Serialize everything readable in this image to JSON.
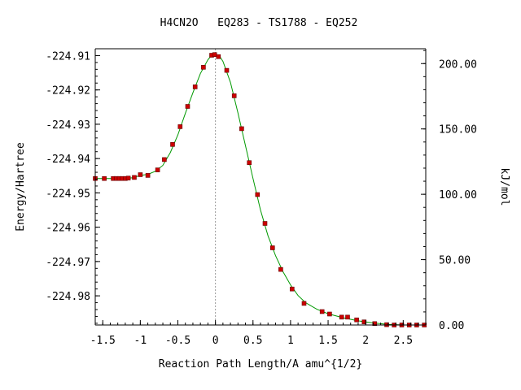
{
  "chart_data": {
    "type": "scatter",
    "title": "H4CN2O   EQ283 - TS1788 - EQ252",
    "xlabel": "Reaction Path Length/A amu^{1/2}",
    "ylabel": "Energy/Hartree",
    "y2label": "kJ/mol",
    "xlim": [
      -1.6,
      2.8
    ],
    "ylim": [
      -224.9885,
      -224.908
    ],
    "y2lim": [
      0.0,
      211.35
    ],
    "x_ticks": [
      -1.5,
      -1,
      -0.5,
      0,
      0.5,
      1,
      1.5,
      2,
      2.5
    ],
    "x_tick_labels": [
      "-1.5",
      "-1",
      "-0.5",
      "0",
      "0.5",
      "1",
      "1.5",
      "2",
      "2.5"
    ],
    "y_ticks": [
      -224.91,
      -224.92,
      -224.93,
      -224.94,
      -224.95,
      -224.96,
      -224.97,
      -224.98
    ],
    "y_tick_labels": [
      "-224.91",
      "-224.92",
      "-224.93",
      "-224.94",
      "-224.95",
      "-224.96",
      "-224.97",
      "-224.98"
    ],
    "y2_ticks": [
      200,
      150,
      100,
      50,
      0
    ],
    "y2_tick_labels": [
      "200.00",
      "150.00",
      "100.00",
      "50.00",
      "0.00"
    ],
    "ts_x": 0.0,
    "grid": false,
    "series": [
      {
        "style": "markers",
        "color": "#cc0000",
        "x": [
          -1.6,
          -1.48,
          -1.36,
          -1.32,
          -1.28,
          -1.24,
          -1.2,
          -1.16,
          -1.08,
          -1.0,
          -0.9,
          -0.77,
          -0.68,
          -0.57,
          -0.47,
          -0.37,
          -0.27,
          -0.16,
          -0.05,
          -0.01,
          0.04,
          0.15,
          0.25,
          0.35,
          0.45,
          0.56,
          0.66,
          0.76,
          0.87,
          1.02,
          1.18,
          1.42,
          1.52,
          1.68,
          1.76,
          1.88,
          1.98,
          2.12,
          2.28,
          2.38,
          2.48,
          2.58,
          2.68,
          2.78
        ],
        "y": [
          -224.9458,
          -224.9458,
          -224.9458,
          -224.9458,
          -224.9458,
          -224.9458,
          -224.9458,
          -224.9457,
          -224.9455,
          -224.9447,
          -224.9449,
          -224.9433,
          -224.9403,
          -224.9359,
          -224.9307,
          -224.9248,
          -224.9191,
          -224.9134,
          -224.9099,
          -224.9097,
          -224.9103,
          -224.9143,
          -224.9217,
          -224.9313,
          -224.9412,
          -224.9505,
          -224.9589,
          -224.966,
          -224.9723,
          -224.978,
          -224.9822,
          -224.9846,
          -224.9853,
          -224.9862,
          -224.9862,
          -224.987,
          -224.9876,
          -224.9881,
          -224.9884,
          -224.9885,
          -224.9885,
          -224.9885,
          -224.9885,
          -224.9885
        ]
      },
      {
        "style": "line",
        "color": "#009900",
        "x": [
          -1.6,
          -1.4,
          -1.2,
          -1.1,
          -1.0,
          -0.9,
          -0.8,
          -0.7,
          -0.6,
          -0.5,
          -0.4,
          -0.3,
          -0.2,
          -0.1,
          -0.05,
          0.0,
          0.05,
          0.1,
          0.2,
          0.3,
          0.4,
          0.5,
          0.6,
          0.7,
          0.8,
          0.9,
          1.0,
          1.1,
          1.2,
          1.35,
          1.5,
          1.7,
          1.9,
          2.1,
          2.3,
          2.5,
          2.8
        ],
        "y": [
          -224.9458,
          -224.9458,
          -224.9458,
          -224.9456,
          -224.9449,
          -224.9446,
          -224.9437,
          -224.942,
          -224.9382,
          -224.9331,
          -224.9268,
          -224.9208,
          -224.9152,
          -224.9112,
          -224.9099,
          -224.9097,
          -224.91,
          -224.9117,
          -224.9178,
          -224.9267,
          -224.9362,
          -224.9458,
          -224.955,
          -224.9625,
          -224.9683,
          -224.973,
          -224.9768,
          -224.9799,
          -224.982,
          -224.9839,
          -224.9852,
          -224.9864,
          -224.9873,
          -224.9879,
          -224.9883,
          -224.9885,
          -224.9885
        ]
      }
    ]
  }
}
